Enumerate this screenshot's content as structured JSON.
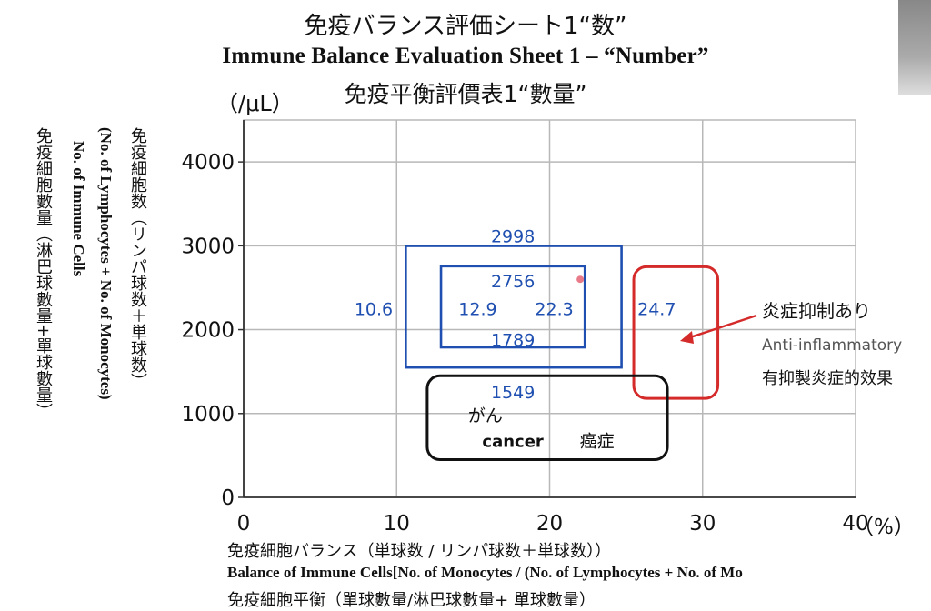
{
  "titles": {
    "jp": "免疫バランス評価シート1“数”",
    "en": "Immune Balance Evaluation Sheet 1 – “Number”",
    "zh": "免疫平衡評價表1“數量”"
  },
  "y_unit": "（/μL）",
  "x_unit": "（%）",
  "y_axis_labels": {
    "zh": "免疫細胞數量（淋巴球數量+單球數量）",
    "en_line1": "No. of Immune Cells",
    "en_line2": "(No. of Lymphocytes + No. of Monocytes)",
    "jp": "免疫細胞数（リンパ球数＋単球数）"
  },
  "x_axis_labels": {
    "jp": "免疫細胞バランス（単球数 / リンパ球数＋単球数））",
    "en": "Balance of Immune Cells[No. of Monocytes / (No. of Lymphocytes + No. of Mo",
    "zh": "免疫細胞平衡（單球數量/淋巴球數量+ 單球數量）"
  },
  "annotation": {
    "jp": "炎症抑制あり",
    "en": "Anti-inflammatory",
    "zh": "有抑製炎症的效果"
  },
  "colors": {
    "blue": "#1f4fb0",
    "red": "#d42a2a",
    "black": "#111111",
    "grid": "#b8b8b8"
  },
  "chart_data": {
    "type": "scatter",
    "x_ticks": [
      "0",
      "10",
      "20",
      "30",
      "40"
    ],
    "y_ticks": [
      "0",
      "1000",
      "2000",
      "3000",
      "4000"
    ],
    "xlim": [
      0,
      40
    ],
    "ylim": [
      0,
      4500
    ],
    "grid": true,
    "regions": [
      {
        "label_key": "outer",
        "x": [
          10.6,
          24.7
        ],
        "y": [
          1549,
          2998
        ],
        "color": "blue"
      },
      {
        "label_key": "inner",
        "x": [
          12.9,
          22.3
        ],
        "y": [
          1789,
          2756
        ],
        "color": "blue"
      },
      {
        "label_key": "red",
        "x": [
          25.5,
          31.0
        ],
        "y": [
          1180,
          2750
        ],
        "color": "red"
      },
      {
        "label_key": "cancer",
        "x": [
          12.0,
          27.7
        ],
        "y": [
          450,
          1450
        ],
        "color": "black"
      }
    ],
    "value_labels": [
      {
        "text": "2998",
        "x": 17.6,
        "y": 3120
      },
      {
        "text": "2756",
        "x": 17.6,
        "y": 2580
      },
      {
        "text": "10.6",
        "x": 8.5,
        "y": 2250
      },
      {
        "text": "12.9",
        "x": 15.3,
        "y": 2250
      },
      {
        "text": "22.3",
        "x": 20.3,
        "y": 2250
      },
      {
        "text": "24.7",
        "x": 27.0,
        "y": 2250
      },
      {
        "text": "1789",
        "x": 17.6,
        "y": 1880
      },
      {
        "text": "1549",
        "x": 17.6,
        "y": 1260
      }
    ],
    "cancer_labels": {
      "kana": "がん",
      "en": "cancer",
      "zh": "癌症"
    }
  }
}
